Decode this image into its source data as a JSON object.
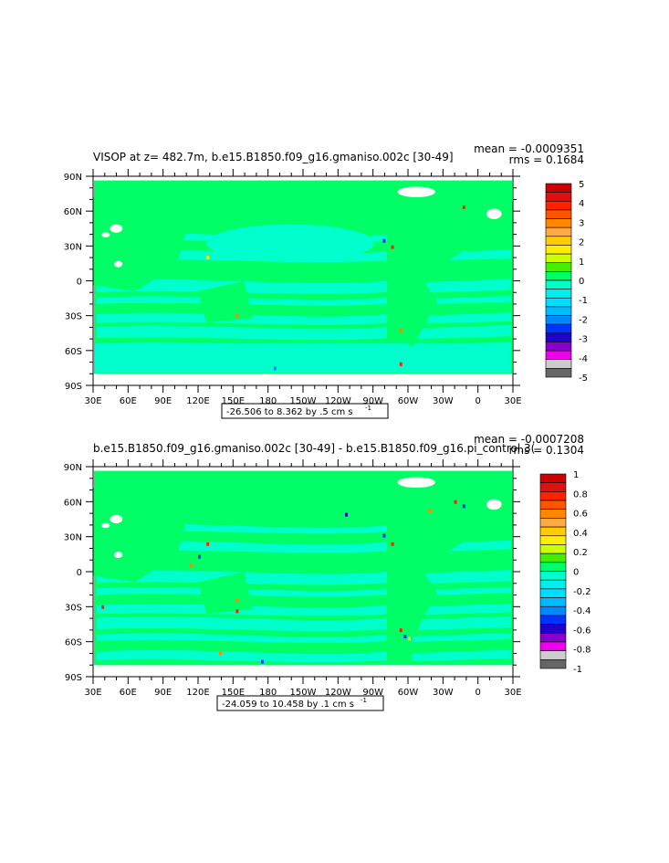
{
  "chart_data": [
    {
      "type": "heatmap",
      "title": "VISOP at z= 482.7m, b.e15.B1850.f09_g16.gmaniso.002c [30-49]",
      "stats": {
        "mean": "mean = -0.0009351",
        "rms": "rms = 0.1684"
      },
      "x_ticks": [
        "30E",
        "60E",
        "90E",
        "120E",
        "150E",
        "180",
        "150W",
        "120W",
        "90W",
        "60W",
        "30W",
        "0",
        "30E"
      ],
      "y_ticks": [
        "90N",
        "60N",
        "30N",
        "0",
        "30S",
        "60S",
        "90S"
      ],
      "range_label": "-26.506 to 8.362 by .5 cm s",
      "range_unit_exp": "-1",
      "legend": {
        "labels": [
          "5",
          "4",
          "3",
          "2",
          "1",
          "0",
          "-1",
          "-2",
          "-3",
          "-4",
          "-5"
        ],
        "colors": [
          "#cc0000",
          "#dd1111",
          "#ff2200",
          "#ff5500",
          "#ff8800",
          "#ffaa44",
          "#ffcc00",
          "#ffee00",
          "#ccff00",
          "#44ee00",
          "#00ff66",
          "#00ffcc",
          "#00eeee",
          "#00ddff",
          "#00bbff",
          "#0088ff",
          "#0033ff",
          "#2200cc",
          "#8800cc",
          "#ee00ee",
          "#cccccc",
          "#666666"
        ]
      }
    },
    {
      "type": "heatmap",
      "title": "b.e15.B1850.f09_g16.gmaniso.002c [30-49] - b.e15.B1850.f09_g16.pi_control.3(",
      "stats": {
        "mean": "mean = -0.0007208",
        "rms": "rms = 0.1304"
      },
      "x_ticks": [
        "30E",
        "60E",
        "90E",
        "120E",
        "150E",
        "180",
        "150W",
        "120W",
        "90W",
        "60W",
        "30W",
        "0",
        "30E"
      ],
      "y_ticks": [
        "90N",
        "60N",
        "30N",
        "0",
        "30S",
        "60S",
        "90S"
      ],
      "range_label": "-24.059 to 10.458 by .1 cm s",
      "range_unit_exp": "-1",
      "legend": {
        "labels": [
          "1",
          "0.8",
          "0.6",
          "0.4",
          "0.2",
          "0",
          "-0.2",
          "-0.4",
          "-0.6",
          "-0.8",
          "-1"
        ],
        "colors": [
          "#cc0000",
          "#dd1111",
          "#ff2200",
          "#ff5500",
          "#ff8800",
          "#ffaa44",
          "#ffcc00",
          "#ffee00",
          "#ccff00",
          "#44ee00",
          "#00ff66",
          "#00ffcc",
          "#00eeee",
          "#00ddff",
          "#00bbff",
          "#0088ff",
          "#0033ff",
          "#2200cc",
          "#8800cc",
          "#ee00ee",
          "#cccccc",
          "#666666"
        ]
      }
    }
  ]
}
